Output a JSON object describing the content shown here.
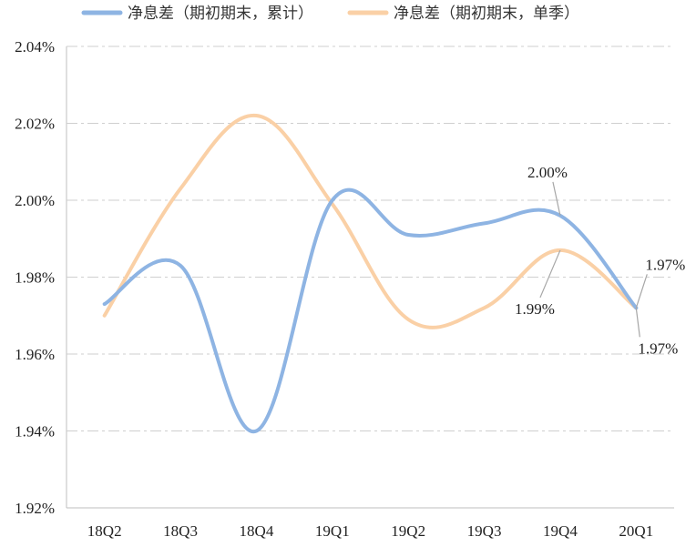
{
  "chart_data": {
    "type": "line",
    "categories": [
      "18Q2",
      "18Q3",
      "18Q4",
      "19Q1",
      "19Q2",
      "19Q3",
      "19Q4",
      "20Q1"
    ],
    "yticks": [
      "2.04%",
      "2.02%",
      "2.00%",
      "1.98%",
      "1.96%",
      "1.94%",
      "1.92%"
    ],
    "ylim": [
      1.92,
      2.04
    ],
    "grid": true,
    "legend_position": "top",
    "series": [
      {
        "name": "净息差（期初期末，累计）",
        "color": "#8EB4E3",
        "values": [
          1.973,
          1.983,
          1.94,
          2.0,
          1.991,
          1.994,
          1.996,
          1.972
        ]
      },
      {
        "name": "净息差（期初期末，单季）",
        "color": "#FAD0A6",
        "values": [
          1.97,
          2.003,
          2.022,
          1.999,
          1.969,
          1.972,
          1.987,
          1.972
        ]
      }
    ],
    "annotations": [
      {
        "text": "2.00%",
        "series": 0,
        "category": "19Q4"
      },
      {
        "text": "1.99%",
        "series": 1,
        "category": "19Q4"
      },
      {
        "text": "1.97%",
        "series": 0,
        "category": "20Q1"
      },
      {
        "text": "1.97%",
        "series": 1,
        "category": "20Q1"
      }
    ]
  }
}
